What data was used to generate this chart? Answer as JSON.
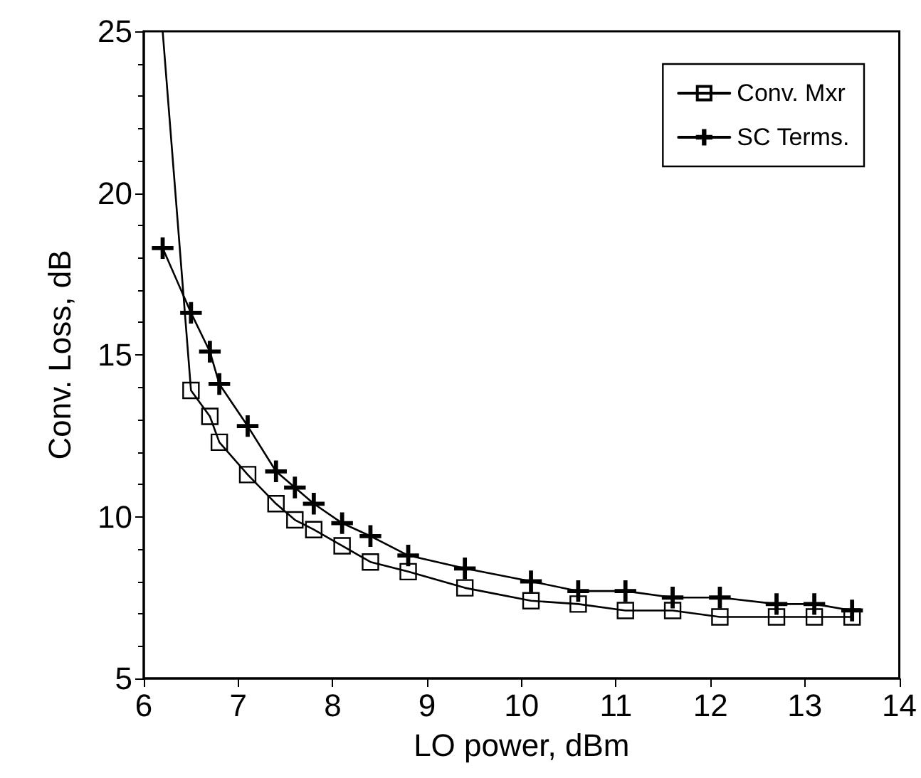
{
  "chart_data": {
    "type": "line",
    "xlabel": "LO power, dBm",
    "ylabel": "Conv. Loss, dB",
    "xlim": [
      6,
      14
    ],
    "xticks": [
      6,
      7,
      8,
      9,
      10,
      11,
      12,
      13,
      14
    ],
    "ylim": [
      5,
      25
    ],
    "yticks": [
      5,
      10,
      15,
      20,
      25
    ],
    "grid": false,
    "legend": "top right",
    "line_style": "solid",
    "series": [
      {
        "name": "Conv. Mxr",
        "color": "#000000",
        "marker": "square",
        "x": [
          6.2,
          6.5,
          6.7,
          6.8,
          7.1,
          7.4,
          7.6,
          7.8,
          8.1,
          8.4,
          8.8,
          9.4,
          10.1,
          10.6,
          11.1,
          11.6,
          12.1,
          12.7,
          13.1,
          13.5
        ],
        "values": [
          25,
          13.9,
          13.1,
          12.3,
          11.3,
          10.4,
          9.9,
          9.6,
          9.1,
          8.6,
          8.3,
          7.8,
          7.4,
          7.3,
          7.1,
          7.1,
          6.9,
          6.9,
          6.9,
          6.9
        ]
      },
      {
        "name": "SC Terms.",
        "color": "#000000",
        "marker": "cross",
        "x": [
          6.2,
          6.5,
          6.7,
          6.8,
          7.1,
          7.4,
          7.6,
          7.8,
          8.1,
          8.4,
          8.8,
          9.4,
          10.1,
          10.6,
          11.1,
          11.6,
          12.1,
          12.7,
          13.1,
          13.5
        ],
        "values": [
          18.3,
          16.3,
          15.1,
          14.1,
          12.8,
          11.4,
          10.9,
          10.4,
          9.8,
          9.4,
          8.8,
          8.4,
          8.0,
          7.7,
          7.7,
          7.5,
          7.5,
          7.3,
          7.3,
          7.1
        ]
      }
    ]
  }
}
